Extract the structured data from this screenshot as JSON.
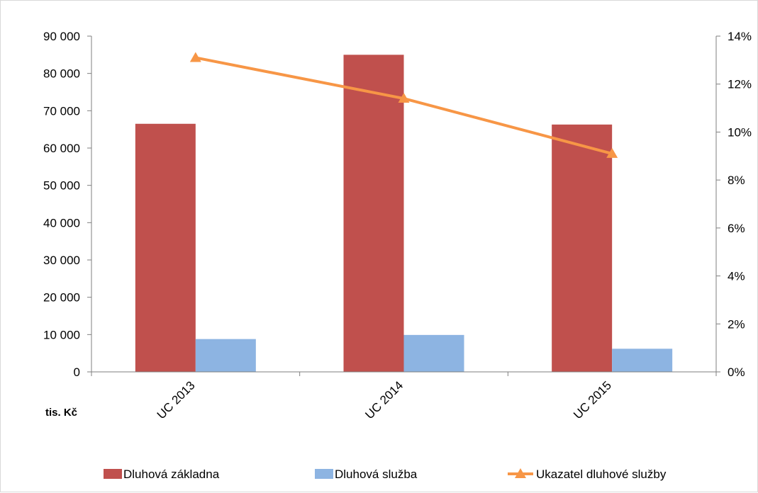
{
  "chart_data": {
    "type": "bar",
    "categories": [
      "UC 2013",
      "UC 2014",
      "UC 2015"
    ],
    "series": [
      {
        "name": "Dluhová základna",
        "type": "bar",
        "axis": "left",
        "color": "#c0504d",
        "values": [
          66500,
          85000,
          66300
        ]
      },
      {
        "name": "Dluhová služba",
        "type": "bar",
        "axis": "left",
        "color": "#8db4e2",
        "values": [
          8800,
          9900,
          6200
        ]
      },
      {
        "name": "Ukazatel dluhové služby",
        "type": "line",
        "axis": "right",
        "color": "#f79646",
        "marker": "triangle",
        "values": [
          0.131,
          0.114,
          0.091
        ]
      }
    ],
    "ylim": [
      0,
      90000
    ],
    "y_ticks": [
      "0",
      "10 000",
      "20 000",
      "30 000",
      "40 000",
      "50 000",
      "60 000",
      "70 000",
      "80 000",
      "90 000"
    ],
    "y2lim": [
      0,
      0.14
    ],
    "y2_ticks": [
      "0%",
      "2%",
      "4%",
      "6%",
      "8%",
      "10%",
      "12%",
      "14%"
    ],
    "unit_label": "tis. Kč",
    "grid": false,
    "legend": "bottom"
  }
}
